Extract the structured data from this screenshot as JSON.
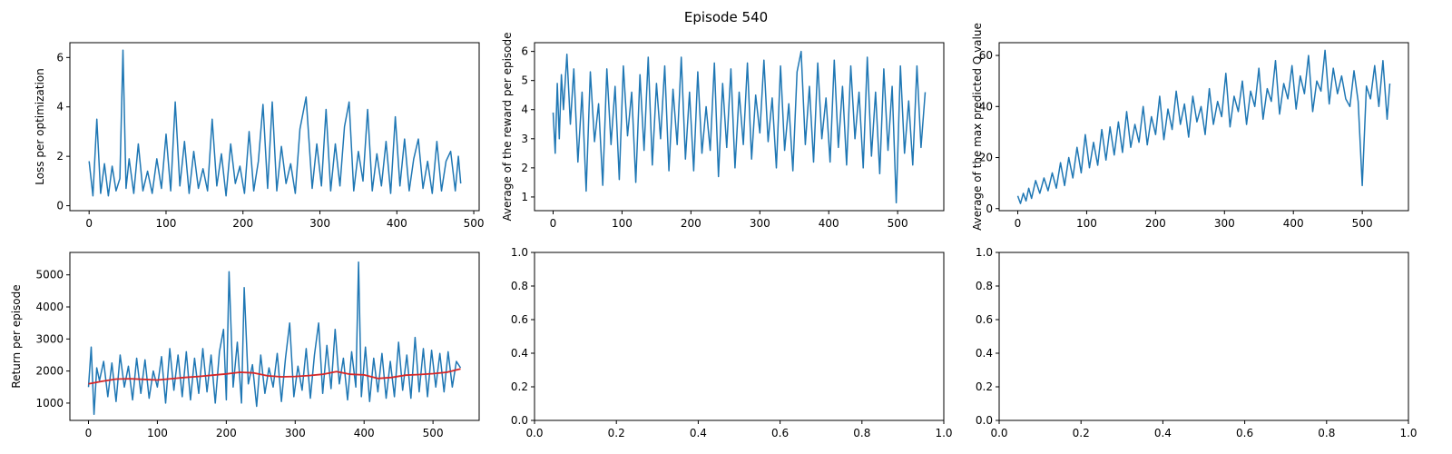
{
  "figure_title": "Episode 540",
  "colors": {
    "series": "#1f77b4",
    "moving_average": "#d62728",
    "axes": "#000000"
  },
  "chart_data": [
    {
      "type": "line",
      "xlabel": "",
      "ylabel": "Loss per optimization",
      "xlim": [
        -25,
        507
      ],
      "ylim": [
        -0.2,
        6.6
      ],
      "xticks": [
        0,
        100,
        200,
        300,
        400,
        500
      ],
      "yticks": [
        0,
        2,
        4,
        6
      ],
      "series": [
        {
          "style": "line",
          "color": "#1f77b4",
          "x": [
            0,
            5,
            10,
            15,
            20,
            25,
            30,
            35,
            40,
            44,
            48,
            52,
            58,
            64,
            70,
            76,
            82,
            88,
            94,
            100,
            106,
            112,
            118,
            124,
            130,
            136,
            142,
            148,
            154,
            160,
            166,
            172,
            178,
            184,
            190,
            196,
            202,
            208,
            214,
            220,
            226,
            232,
            238,
            244,
            250,
            256,
            262,
            268,
            274,
            282,
            290,
            296,
            302,
            308,
            314,
            320,
            326,
            332,
            338,
            344,
            350,
            356,
            362,
            368,
            374,
            380,
            386,
            392,
            398,
            404,
            410,
            416,
            422,
            428,
            434,
            440,
            446,
            452,
            458,
            464,
            470,
            476,
            480,
            483
          ],
          "y": [
            1.8,
            0.4,
            3.5,
            0.5,
            1.7,
            0.4,
            1.6,
            0.6,
            1.1,
            6.3,
            0.7,
            1.9,
            0.5,
            2.5,
            0.6,
            1.4,
            0.5,
            1.9,
            0.7,
            2.9,
            0.6,
            4.2,
            0.8,
            2.6,
            0.5,
            2.2,
            0.7,
            1.5,
            0.6,
            3.5,
            0.8,
            2.1,
            0.4,
            2.5,
            0.9,
            1.6,
            0.5,
            3.0,
            0.6,
            1.8,
            4.1,
            0.7,
            4.2,
            0.6,
            2.4,
            0.9,
            1.7,
            0.5,
            3.1,
            4.4,
            0.7,
            2.5,
            0.8,
            3.9,
            0.6,
            2.5,
            0.8,
            3.2,
            4.2,
            0.6,
            2.2,
            1.0,
            3.9,
            0.6,
            2.1,
            0.8,
            2.6,
            0.5,
            3.6,
            0.8,
            2.7,
            0.6,
            1.9,
            2.7,
            0.7,
            1.8,
            0.5,
            2.6,
            0.6,
            1.8,
            2.2,
            0.6,
            2.0,
            0.9
          ]
        }
      ]
    },
    {
      "type": "line",
      "xlabel": "",
      "ylabel": "Average of the reward per episode",
      "xlim": [
        -27,
        567
      ],
      "ylim": [
        0.53,
        6.3
      ],
      "xticks": [
        0,
        100,
        200,
        300,
        400,
        500
      ],
      "yticks": [
        1,
        2,
        3,
        4,
        5,
        6
      ],
      "series": [
        {
          "style": "line",
          "color": "#1f77b4",
          "x": [
            0,
            3,
            6,
            9,
            12,
            15,
            20,
            25,
            30,
            36,
            42,
            48,
            54,
            60,
            66,
            72,
            78,
            84,
            90,
            96,
            102,
            108,
            114,
            120,
            126,
            132,
            138,
            144,
            150,
            156,
            162,
            168,
            174,
            180,
            186,
            192,
            198,
            204,
            210,
            216,
            222,
            228,
            234,
            240,
            246,
            252,
            258,
            264,
            270,
            276,
            282,
            288,
            294,
            300,
            306,
            312,
            318,
            324,
            330,
            336,
            342,
            348,
            354,
            360,
            366,
            372,
            378,
            384,
            390,
            396,
            402,
            408,
            414,
            420,
            426,
            432,
            438,
            444,
            450,
            456,
            462,
            468,
            474,
            480,
            486,
            492,
            498,
            504,
            510,
            516,
            522,
            528,
            534,
            540
          ],
          "y": [
            3.9,
            2.5,
            4.9,
            3.0,
            5.2,
            4.0,
            5.9,
            3.5,
            5.4,
            2.2,
            4.6,
            1.2,
            5.3,
            2.9,
            4.2,
            1.4,
            5.4,
            2.8,
            4.8,
            1.6,
            5.5,
            3.1,
            4.6,
            1.5,
            5.2,
            2.6,
            5.8,
            2.1,
            4.9,
            3.0,
            5.5,
            1.9,
            4.7,
            2.8,
            5.8,
            2.3,
            4.6,
            1.9,
            5.3,
            2.5,
            4.1,
            2.6,
            5.6,
            1.7,
            4.9,
            2.7,
            5.4,
            2.0,
            4.6,
            2.8,
            5.6,
            2.3,
            4.5,
            3.2,
            5.7,
            2.9,
            4.4,
            2.0,
            5.5,
            2.6,
            4.2,
            1.9,
            5.3,
            6.0,
            2.8,
            4.8,
            2.2,
            5.6,
            3.0,
            4.4,
            2.2,
            5.7,
            2.7,
            4.8,
            2.1,
            5.5,
            3.0,
            4.6,
            2.0,
            5.8,
            2.4,
            4.6,
            1.8,
            5.4,
            2.6,
            4.8,
            0.8,
            5.5,
            2.5,
            4.3,
            2.1,
            5.5,
            2.7,
            4.6
          ]
        }
      ]
    },
    {
      "type": "line",
      "xlabel": "",
      "ylabel": "Average of the max predicted Q value",
      "xlim": [
        -27,
        567
      ],
      "ylim": [
        -0.8,
        65
      ],
      "xticks": [
        0,
        100,
        200,
        300,
        400,
        500
      ],
      "yticks": [
        0,
        20,
        40,
        60
      ],
      "series": [
        {
          "style": "line",
          "color": "#1f77b4",
          "x": [
            0,
            4,
            8,
            12,
            16,
            20,
            26,
            32,
            38,
            44,
            50,
            56,
            62,
            68,
            74,
            80,
            86,
            92,
            98,
            104,
            110,
            116,
            122,
            128,
            134,
            140,
            146,
            152,
            158,
            164,
            170,
            176,
            182,
            188,
            194,
            200,
            206,
            212,
            218,
            224,
            230,
            236,
            242,
            248,
            254,
            260,
            266,
            272,
            278,
            284,
            290,
            296,
            302,
            308,
            314,
            320,
            326,
            332,
            338,
            344,
            350,
            356,
            362,
            368,
            374,
            380,
            386,
            392,
            398,
            404,
            410,
            416,
            422,
            428,
            434,
            440,
            446,
            452,
            458,
            464,
            470,
            476,
            482,
            488,
            494,
            500,
            506,
            512,
            518,
            524,
            530,
            536,
            540
          ],
          "y": [
            5,
            2,
            6,
            3,
            8,
            4,
            11,
            6,
            12,
            7,
            14,
            8,
            18,
            9,
            20,
            12,
            24,
            14,
            29,
            16,
            26,
            17,
            31,
            19,
            32,
            21,
            34,
            22,
            38,
            24,
            33,
            26,
            40,
            25,
            36,
            29,
            44,
            27,
            39,
            31,
            46,
            33,
            41,
            28,
            44,
            34,
            40,
            29,
            47,
            33,
            42,
            36,
            53,
            32,
            44,
            38,
            50,
            33,
            46,
            40,
            55,
            35,
            47,
            42,
            58,
            37,
            49,
            43,
            56,
            39,
            52,
            45,
            60,
            38,
            50,
            46,
            62,
            41,
            55,
            45,
            52,
            43,
            40,
            54,
            42,
            9,
            48,
            43,
            56,
            40,
            58,
            35,
            49
          ]
        }
      ]
    },
    {
      "type": "line",
      "xlabel": "",
      "ylabel": "Return per episode",
      "xlim": [
        -27,
        567
      ],
      "ylim": [
        460,
        5700
      ],
      "xticks": [
        0,
        100,
        200,
        300,
        400,
        500
      ],
      "yticks": [
        1000,
        2000,
        3000,
        4000,
        5000
      ],
      "series": [
        {
          "style": "line",
          "color": "#1f77b4",
          "x": [
            0,
            4,
            8,
            12,
            16,
            22,
            28,
            34,
            40,
            46,
            52,
            58,
            64,
            70,
            76,
            82,
            88,
            94,
            100,
            106,
            112,
            118,
            124,
            130,
            136,
            142,
            148,
            154,
            160,
            166,
            172,
            178,
            184,
            190,
            196,
            200,
            204,
            210,
            216,
            222,
            226,
            232,
            238,
            244,
            250,
            256,
            262,
            268,
            274,
            280,
            286,
            292,
            298,
            304,
            310,
            316,
            322,
            328,
            334,
            340,
            346,
            352,
            358,
            364,
            370,
            376,
            382,
            388,
            392,
            396,
            402,
            408,
            414,
            420,
            426,
            432,
            438,
            444,
            450,
            456,
            462,
            468,
            474,
            480,
            486,
            492,
            498,
            504,
            510,
            516,
            522,
            528,
            534,
            540
          ],
          "y": [
            1500,
            2750,
            650,
            2100,
            1700,
            2300,
            1200,
            2250,
            1050,
            2500,
            1500,
            2150,
            1100,
            2400,
            1300,
            2350,
            1150,
            2000,
            1500,
            2450,
            1000,
            2700,
            1400,
            2500,
            1200,
            2600,
            1100,
            2400,
            1300,
            2700,
            1350,
            2500,
            1000,
            2600,
            3300,
            1100,
            5100,
            1500,
            2900,
            1000,
            4600,
            1600,
            2200,
            900,
            2500,
            1300,
            2100,
            1500,
            2550,
            1050,
            2400,
            3500,
            1200,
            2150,
            1400,
            2700,
            1150,
            2500,
            3500,
            1300,
            2800,
            1450,
            3300,
            1600,
            2400,
            1100,
            2600,
            1500,
            5400,
            1200,
            2750,
            1050,
            2400,
            1350,
            2550,
            1150,
            2300,
            1200,
            2900,
            1400,
            2500,
            1150,
            3050,
            1350,
            2700,
            1200,
            2650,
            1500,
            2550,
            1350,
            2600,
            1500,
            2300,
            2100
          ]
        },
        {
          "style": "line",
          "color": "#d62728",
          "x": [
            0,
            20,
            40,
            60,
            80,
            100,
            120,
            140,
            160,
            180,
            200,
            220,
            240,
            260,
            280,
            300,
            320,
            340,
            360,
            380,
            400,
            420,
            440,
            460,
            480,
            500,
            520,
            540
          ],
          "y": [
            1600,
            1680,
            1750,
            1760,
            1740,
            1720,
            1760,
            1800,
            1830,
            1870,
            1910,
            1960,
            1940,
            1850,
            1820,
            1830,
            1860,
            1900,
            1980,
            1900,
            1880,
            1770,
            1800,
            1870,
            1890,
            1920,
            1960,
            2070
          ]
        }
      ]
    },
    {
      "type": "line",
      "xlabel": "",
      "ylabel": "",
      "xlim": [
        0,
        1
      ],
      "ylim": [
        0,
        1
      ],
      "xticks": [
        0.0,
        0.2,
        0.4,
        0.6,
        0.8,
        1.0
      ],
      "yticks": [
        0.0,
        0.2,
        0.4,
        0.6,
        0.8,
        1.0
      ],
      "tick_labels_x": [
        "0.0",
        "0.2",
        "0.4",
        "0.6",
        "0.8",
        "1.0"
      ],
      "tick_labels_y": [
        "0.0",
        "0.2",
        "0.4",
        "0.6",
        "0.8",
        "1.0"
      ],
      "series": []
    },
    {
      "type": "line",
      "xlabel": "",
      "ylabel": "",
      "xlim": [
        0,
        1
      ],
      "ylim": [
        0,
        1
      ],
      "xticks": [
        0.0,
        0.2,
        0.4,
        0.6,
        0.8,
        1.0
      ],
      "yticks": [
        0.0,
        0.2,
        0.4,
        0.6,
        0.8,
        1.0
      ],
      "tick_labels_x": [
        "0.0",
        "0.2",
        "0.4",
        "0.6",
        "0.8",
        "1.0"
      ],
      "tick_labels_y": [
        "0.0",
        "0.2",
        "0.4",
        "0.6",
        "0.8",
        "1.0"
      ],
      "series": []
    }
  ]
}
